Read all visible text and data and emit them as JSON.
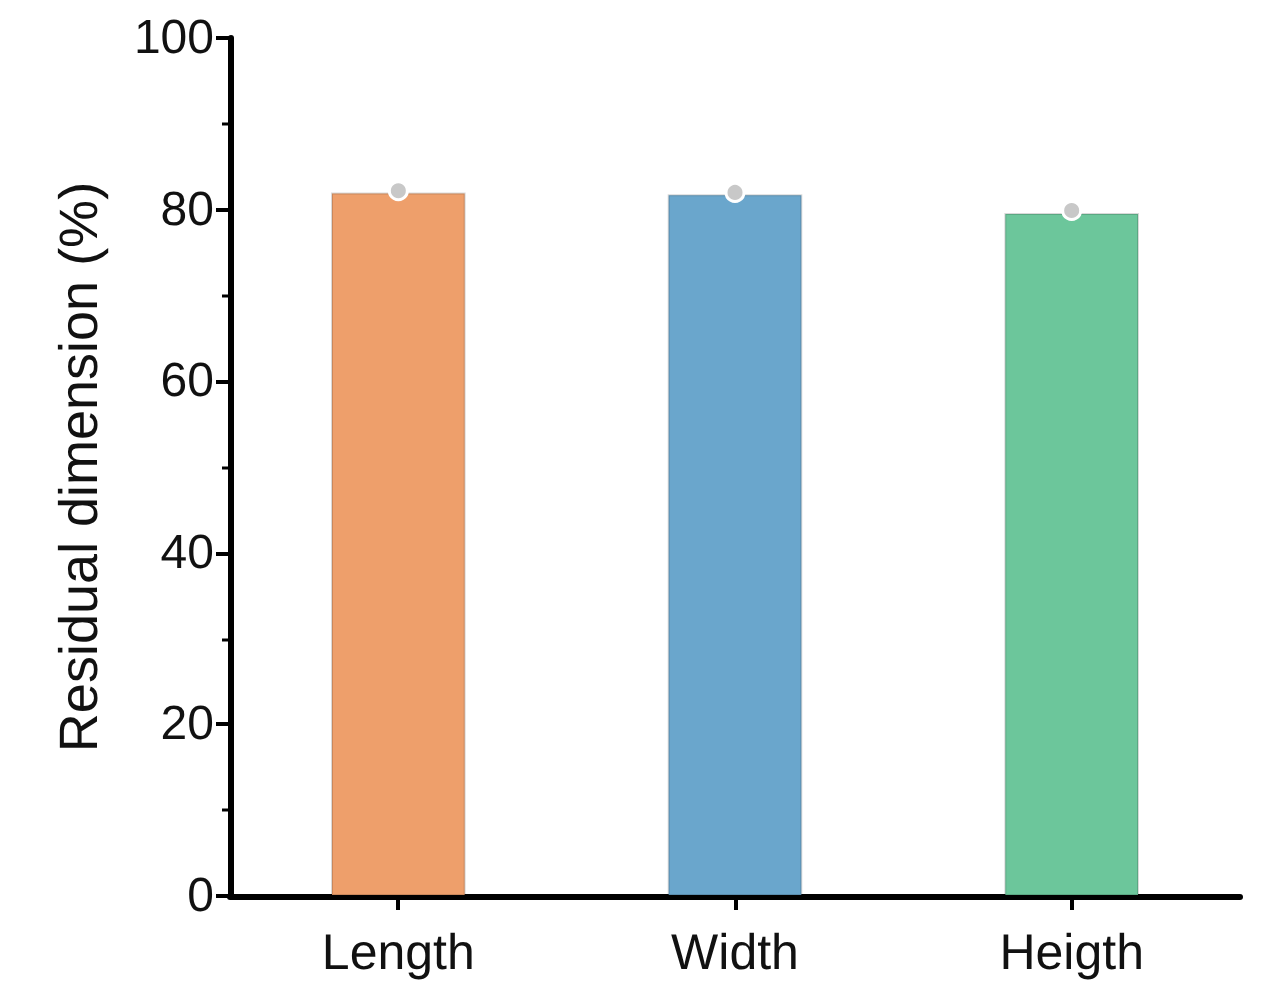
{
  "chart_data": {
    "type": "bar",
    "ylabel": "Residual dimension (%)",
    "categories": [
      "Length",
      "Width",
      "Heigth"
    ],
    "series": [
      {
        "colors": [
          "#ee9f6b",
          "#6aa6cc",
          "#6cc69b"
        ],
        "values": [
          82,
          81.8,
          79.6
        ]
      },
      {
        "type": "scatter",
        "color": "#c8c8c8",
        "x": [
          "Length",
          "Width",
          "Heigth"
        ],
        "values": [
          82.2,
          82,
          79.9
        ]
      }
    ],
    "ylim": [
      0,
      100
    ],
    "yticks": [
      0,
      20,
      40,
      60,
      80,
      100
    ],
    "grid": false,
    "marker": "circle"
  }
}
